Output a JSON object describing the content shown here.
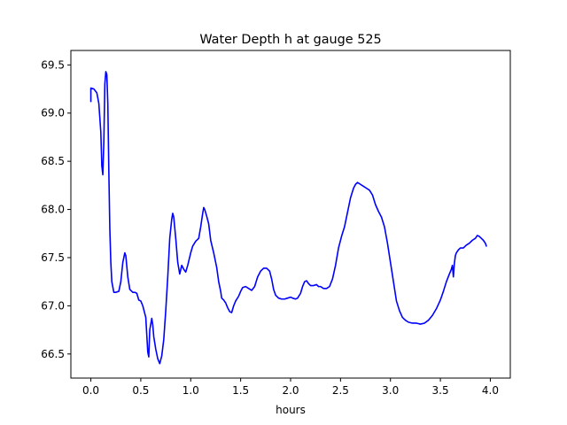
{
  "chart_data": {
    "type": "line",
    "title": "Water Depth h at gauge 525",
    "xlabel": "hours",
    "ylabel": "",
    "xlim": [
      -0.2,
      4.2
    ],
    "ylim": [
      66.25,
      69.65
    ],
    "xticks": [
      0.0,
      0.5,
      1.0,
      1.5,
      2.0,
      2.5,
      3.0,
      3.5,
      4.0
    ],
    "xtick_labels": [
      "0.0",
      "0.5",
      "1.0",
      "1.5",
      "2.0",
      "2.5",
      "3.0",
      "3.5",
      "4.0"
    ],
    "yticks": [
      66.5,
      67.0,
      67.5,
      68.0,
      68.5,
      69.0,
      69.5
    ],
    "ytick_labels": [
      "66.5",
      "67.0",
      "67.5",
      "68.0",
      "68.5",
      "69.0",
      "69.5"
    ],
    "grid": false,
    "series": [
      {
        "color": "#0000ff",
        "points": [
          [
            0.0,
            69.12
          ],
          [
            0.0,
            69.26
          ],
          [
            0.03,
            69.25
          ],
          [
            0.06,
            69.21
          ],
          [
            0.08,
            69.1
          ],
          [
            0.1,
            68.8
          ],
          [
            0.11,
            68.45
          ],
          [
            0.12,
            68.36
          ],
          [
            0.13,
            68.7
          ],
          [
            0.14,
            69.3
          ],
          [
            0.15,
            69.43
          ],
          [
            0.16,
            69.4
          ],
          [
            0.17,
            69.1
          ],
          [
            0.18,
            68.4
          ],
          [
            0.19,
            67.8
          ],
          [
            0.2,
            67.45
          ],
          [
            0.21,
            67.25
          ],
          [
            0.23,
            67.14
          ],
          [
            0.25,
            67.14
          ],
          [
            0.28,
            67.15
          ],
          [
            0.3,
            67.25
          ],
          [
            0.32,
            67.45
          ],
          [
            0.34,
            67.55
          ],
          [
            0.35,
            67.52
          ],
          [
            0.37,
            67.3
          ],
          [
            0.39,
            67.17
          ],
          [
            0.4,
            67.16
          ],
          [
            0.42,
            67.14
          ],
          [
            0.44,
            67.14
          ],
          [
            0.46,
            67.13
          ],
          [
            0.48,
            67.06
          ],
          [
            0.5,
            67.05
          ],
          [
            0.52,
            67.0
          ],
          [
            0.55,
            66.88
          ],
          [
            0.56,
            66.7
          ],
          [
            0.57,
            66.52
          ],
          [
            0.58,
            66.47
          ],
          [
            0.59,
            66.75
          ],
          [
            0.61,
            66.87
          ],
          [
            0.62,
            66.8
          ],
          [
            0.63,
            66.68
          ],
          [
            0.65,
            66.55
          ],
          [
            0.67,
            66.45
          ],
          [
            0.69,
            66.4
          ],
          [
            0.71,
            66.48
          ],
          [
            0.73,
            66.65
          ],
          [
            0.75,
            66.95
          ],
          [
            0.77,
            67.3
          ],
          [
            0.79,
            67.7
          ],
          [
            0.81,
            67.9
          ],
          [
            0.82,
            67.96
          ],
          [
            0.83,
            67.92
          ],
          [
            0.85,
            67.7
          ],
          [
            0.87,
            67.45
          ],
          [
            0.89,
            67.33
          ],
          [
            0.91,
            67.42
          ],
          [
            0.93,
            67.38
          ],
          [
            0.95,
            67.35
          ],
          [
            0.97,
            67.42
          ],
          [
            1.0,
            67.55
          ],
          [
            1.02,
            67.62
          ],
          [
            1.05,
            67.67
          ],
          [
            1.08,
            67.7
          ],
          [
            1.1,
            67.82
          ],
          [
            1.12,
            67.96
          ],
          [
            1.13,
            68.02
          ],
          [
            1.14,
            68.0
          ],
          [
            1.16,
            67.93
          ],
          [
            1.18,
            67.85
          ],
          [
            1.2,
            67.68
          ],
          [
            1.23,
            67.55
          ],
          [
            1.26,
            67.4
          ],
          [
            1.28,
            67.25
          ],
          [
            1.3,
            67.15
          ],
          [
            1.31,
            67.08
          ],
          [
            1.33,
            67.06
          ],
          [
            1.35,
            67.03
          ],
          [
            1.37,
            66.98
          ],
          [
            1.39,
            66.94
          ],
          [
            1.41,
            66.93
          ],
          [
            1.43,
            67.0
          ],
          [
            1.45,
            67.05
          ],
          [
            1.48,
            67.1
          ],
          [
            1.5,
            67.15
          ],
          [
            1.52,
            67.19
          ],
          [
            1.55,
            67.2
          ],
          [
            1.58,
            67.18
          ],
          [
            1.61,
            67.16
          ],
          [
            1.64,
            67.2
          ],
          [
            1.67,
            67.3
          ],
          [
            1.7,
            67.36
          ],
          [
            1.73,
            67.39
          ],
          [
            1.76,
            67.39
          ],
          [
            1.79,
            67.36
          ],
          [
            1.81,
            67.28
          ],
          [
            1.83,
            67.17
          ],
          [
            1.85,
            67.11
          ],
          [
            1.88,
            67.08
          ],
          [
            1.91,
            67.07
          ],
          [
            1.94,
            67.07
          ],
          [
            1.97,
            67.08
          ],
          [
            2.0,
            67.09
          ],
          [
            2.02,
            67.08
          ],
          [
            2.05,
            67.07
          ],
          [
            2.07,
            67.08
          ],
          [
            2.1,
            67.13
          ],
          [
            2.12,
            67.2
          ],
          [
            2.14,
            67.25
          ],
          [
            2.16,
            67.26
          ],
          [
            2.18,
            67.23
          ],
          [
            2.2,
            67.21
          ],
          [
            2.23,
            67.21
          ],
          [
            2.26,
            67.22
          ],
          [
            2.28,
            67.2
          ],
          [
            2.3,
            67.2
          ],
          [
            2.33,
            67.18
          ],
          [
            2.36,
            67.18
          ],
          [
            2.39,
            67.2
          ],
          [
            2.42,
            67.28
          ],
          [
            2.45,
            67.42
          ],
          [
            2.48,
            67.6
          ],
          [
            2.51,
            67.72
          ],
          [
            2.54,
            67.82
          ],
          [
            2.57,
            67.97
          ],
          [
            2.6,
            68.12
          ],
          [
            2.63,
            68.22
          ],
          [
            2.65,
            68.26
          ],
          [
            2.67,
            68.28
          ],
          [
            2.7,
            68.26
          ],
          [
            2.73,
            68.24
          ],
          [
            2.76,
            68.22
          ],
          [
            2.79,
            68.2
          ],
          [
            2.82,
            68.15
          ],
          [
            2.85,
            68.05
          ],
          [
            2.88,
            67.98
          ],
          [
            2.91,
            67.92
          ],
          [
            2.94,
            67.82
          ],
          [
            2.97,
            67.65
          ],
          [
            3.0,
            67.45
          ],
          [
            3.03,
            67.25
          ],
          [
            3.06,
            67.05
          ],
          [
            3.09,
            66.95
          ],
          [
            3.12,
            66.88
          ],
          [
            3.15,
            66.85
          ],
          [
            3.18,
            66.83
          ],
          [
            3.22,
            66.82
          ],
          [
            3.26,
            66.82
          ],
          [
            3.3,
            66.81
          ],
          [
            3.34,
            66.82
          ],
          [
            3.38,
            66.85
          ],
          [
            3.42,
            66.9
          ],
          [
            3.46,
            66.97
          ],
          [
            3.5,
            67.06
          ],
          [
            3.53,
            67.15
          ],
          [
            3.56,
            67.25
          ],
          [
            3.59,
            67.33
          ],
          [
            3.61,
            67.38
          ],
          [
            3.62,
            67.42
          ],
          [
            3.63,
            67.3
          ],
          [
            3.64,
            67.44
          ],
          [
            3.65,
            67.52
          ],
          [
            3.66,
            67.55
          ],
          [
            3.68,
            67.58
          ],
          [
            3.7,
            67.6
          ],
          [
            3.73,
            67.6
          ],
          [
            3.76,
            67.63
          ],
          [
            3.79,
            67.65
          ],
          [
            3.82,
            67.68
          ],
          [
            3.85,
            67.7
          ],
          [
            3.87,
            67.73
          ],
          [
            3.89,
            67.72
          ],
          [
            3.91,
            67.7
          ],
          [
            3.93,
            67.68
          ],
          [
            3.95,
            67.65
          ],
          [
            3.96,
            67.62
          ]
        ]
      }
    ]
  }
}
